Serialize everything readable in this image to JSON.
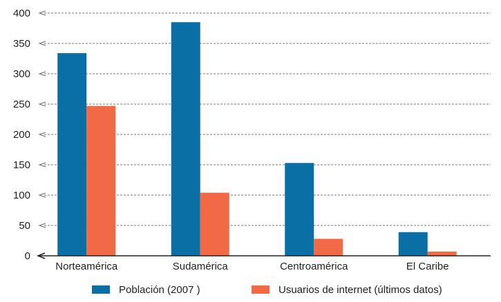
{
  "chart_data": {
    "type": "bar",
    "categories": [
      "Norteamérica",
      "Sudamérica",
      "Centroamérica",
      "El Caribe"
    ],
    "series": [
      {
        "name": "Población (2007 )",
        "color": "#0a6fa5",
        "values": [
          334,
          385,
          153,
          39
        ]
      },
      {
        "name": "Usuarios de internet (últimos datos)",
        "color": "#f26a45",
        "values": [
          247,
          104,
          28,
          7
        ]
      }
    ],
    "yticks": [
      0,
      50,
      100,
      150,
      200,
      250,
      300,
      350,
      400
    ],
    "ylim": [
      0,
      400
    ],
    "grid": true,
    "legend_position": "bottom",
    "xlabel": "",
    "ylabel": "",
    "title": ""
  }
}
